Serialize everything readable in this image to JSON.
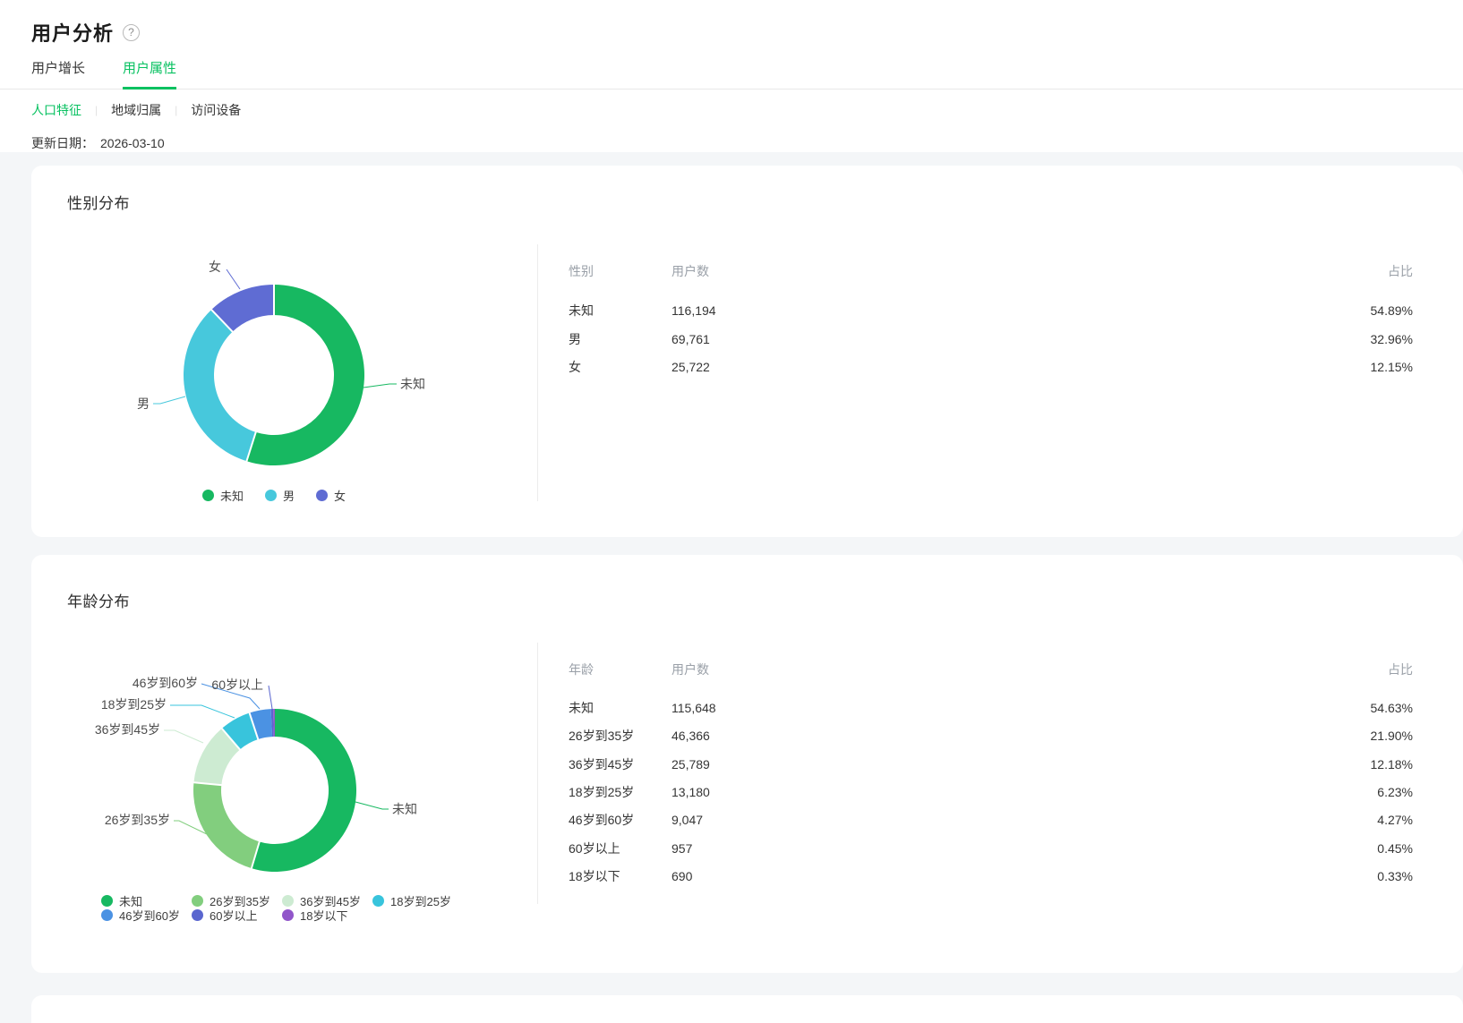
{
  "header": {
    "title": "用户分析",
    "help_icon": "?",
    "tabs": [
      {
        "label": "用户增长",
        "active": false
      },
      {
        "label": "用户属性",
        "active": true
      }
    ],
    "subtabs": [
      {
        "label": "人口特征",
        "active": true
      },
      {
        "label": "地域归属",
        "active": false
      },
      {
        "label": "访问设备",
        "active": false
      }
    ],
    "update_label": "更新日期：",
    "update_date": "2026-03-10"
  },
  "colors": {
    "accent_green": "#07c160",
    "page_background": "#f4f6f8",
    "divider": "#ececec"
  },
  "chart_data": [
    {
      "type": "pie",
      "title": "性别分布",
      "legend_position": "bottom",
      "table_columns": [
        "性别",
        "用户数",
        "占比"
      ],
      "series": [
        {
          "name": "未知",
          "value": 116194,
          "display": "116,194",
          "percent": "54.89%",
          "color": "#17b861"
        },
        {
          "name": "男",
          "value": 69761,
          "display": "69,761",
          "percent": "32.96%",
          "color": "#47c8dc"
        },
        {
          "name": "女",
          "value": 25722,
          "display": "25,722",
          "percent": "12.15%",
          "color": "#5f6cd3"
        }
      ]
    },
    {
      "type": "pie",
      "title": "年龄分布",
      "legend_position": "bottom",
      "table_columns": [
        "年龄",
        "用户数",
        "占比"
      ],
      "series": [
        {
          "name": "未知",
          "value": 115648,
          "display": "115,648",
          "percent": "54.63%",
          "color": "#17b861"
        },
        {
          "name": "26岁到35岁",
          "value": 46366,
          "display": "46,366",
          "percent": "21.90%",
          "color": "#82ce7e"
        },
        {
          "name": "36岁到45岁",
          "value": 25789,
          "display": "25,789",
          "percent": "12.18%",
          "color": "#cdebd2"
        },
        {
          "name": "18岁到25岁",
          "value": 13180,
          "display": "13,180",
          "percent": "6.23%",
          "color": "#38c4dc"
        },
        {
          "name": "46岁到60岁",
          "value": 9047,
          "display": "9,047",
          "percent": "4.27%",
          "color": "#4b92e3"
        },
        {
          "name": "60岁以上",
          "value": 957,
          "display": "957",
          "percent": "0.45%",
          "color": "#5a66cf"
        },
        {
          "name": "18岁以下",
          "value": 690,
          "display": "690",
          "percent": "0.33%",
          "color": "#9156ca"
        }
      ]
    }
  ]
}
